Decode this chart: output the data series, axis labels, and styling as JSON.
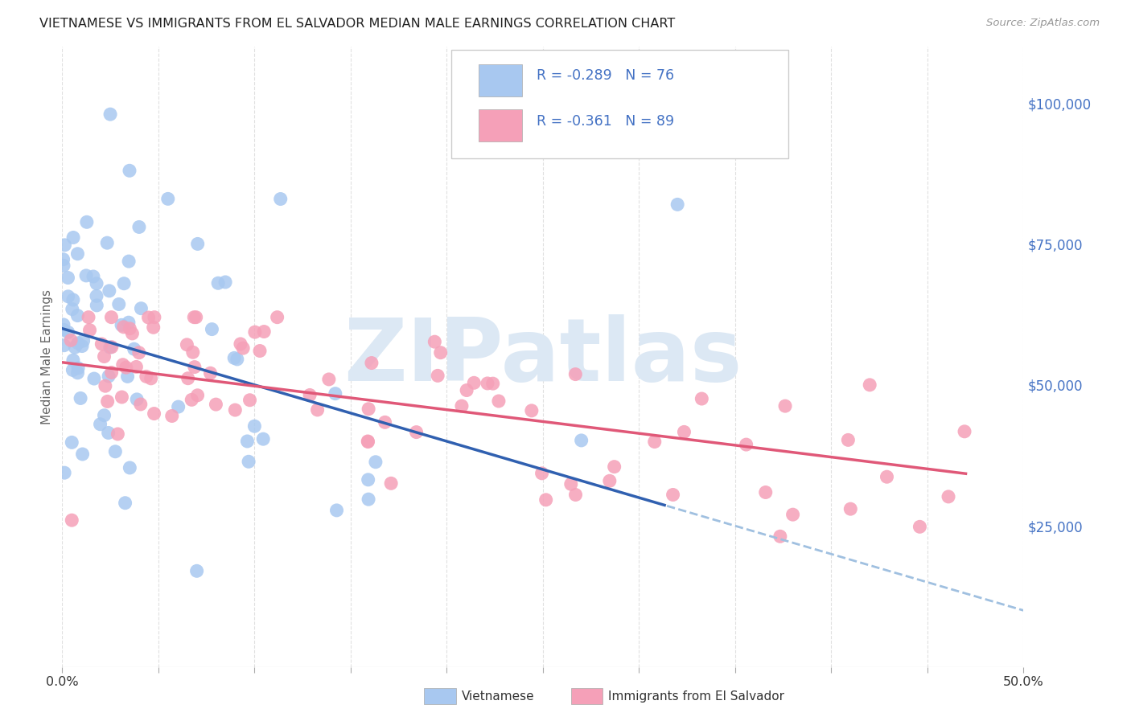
{
  "title": "VIETNAMESE VS IMMIGRANTS FROM EL SALVADOR MEDIAN MALE EARNINGS CORRELATION CHART",
  "source": "Source: ZipAtlas.com",
  "ylabel": "Median Male Earnings",
  "xlim": [
    0.0,
    0.5
  ],
  "ylim": [
    0,
    110000
  ],
  "ytick_vals": [
    0,
    25000,
    50000,
    75000,
    100000
  ],
  "ytick_labels": [
    "",
    "$25,000",
    "$50,000",
    "$75,000",
    "$100,000"
  ],
  "xtick_vals": [
    0.0,
    0.05,
    0.1,
    0.15,
    0.2,
    0.25,
    0.3,
    0.35,
    0.4,
    0.45,
    0.5
  ],
  "xtick_labels": [
    "0.0%",
    "",
    "",
    "",
    "",
    "",
    "",
    "",
    "",
    "",
    "50.0%"
  ],
  "legend_r1": "-0.289",
  "legend_n1": "76",
  "legend_r2": "-0.361",
  "legend_n2": "89",
  "blue_scatter_color": "#a8c8f0",
  "pink_scatter_color": "#f5a0b8",
  "blue_line_color": "#3060b0",
  "pink_line_color": "#e05878",
  "dashed_color": "#a0c0e0",
  "axis_text_color": "#4472c4",
  "label_color": "#666666",
  "watermark_color": "#dce8f4",
  "background_color": "#ffffff",
  "title_fontsize": 11.5,
  "source_fontsize": 9.5,
  "seed_viet": 7,
  "seed_salv": 13,
  "grid_color": "#cccccc"
}
